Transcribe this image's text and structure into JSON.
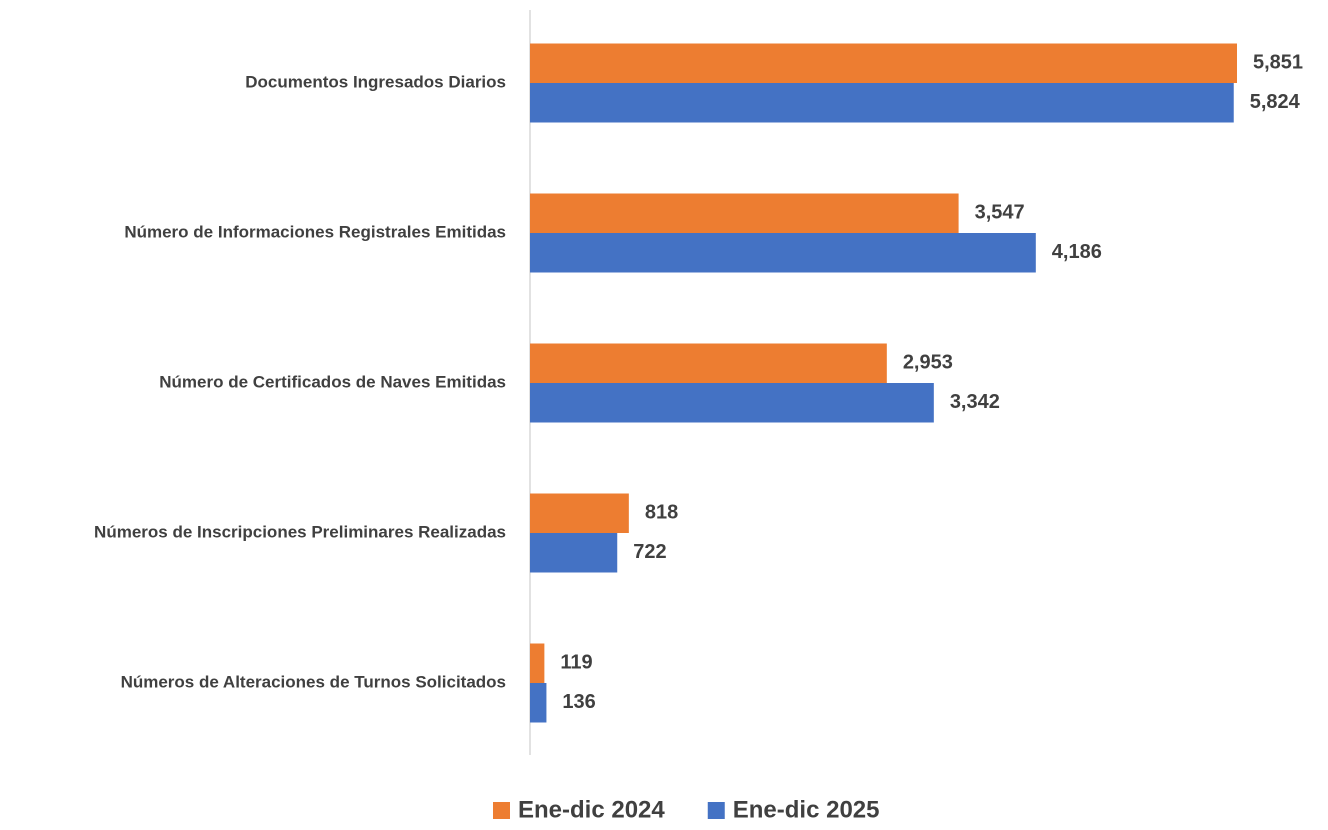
{
  "chart_data": {
    "type": "barh",
    "categories": [
      "Documentos Ingresados Diarios",
      "Número de Informaciones Registrales Emitidas",
      "Número de Certificados de Naves Emitidas",
      "Números de Inscripciones Preliminares Realizadas",
      "Números de Alteraciones de Turnos Solicitados"
    ],
    "series": [
      {
        "name": "Ene-dic 2024",
        "color": "#ED7D31",
        "values": [
          5851,
          3547,
          2953,
          818,
          119
        ],
        "value_labels": [
          "5,851",
          "3,547",
          "2,953",
          "818",
          "119"
        ]
      },
      {
        "name": "Ene-dic 2025",
        "color": "#4472C4",
        "values": [
          5824,
          4186,
          3342,
          722,
          136
        ],
        "value_labels": [
          "5,824",
          "4,186",
          "3,342",
          "722",
          "136"
        ]
      }
    ],
    "legend": "bottom"
  }
}
